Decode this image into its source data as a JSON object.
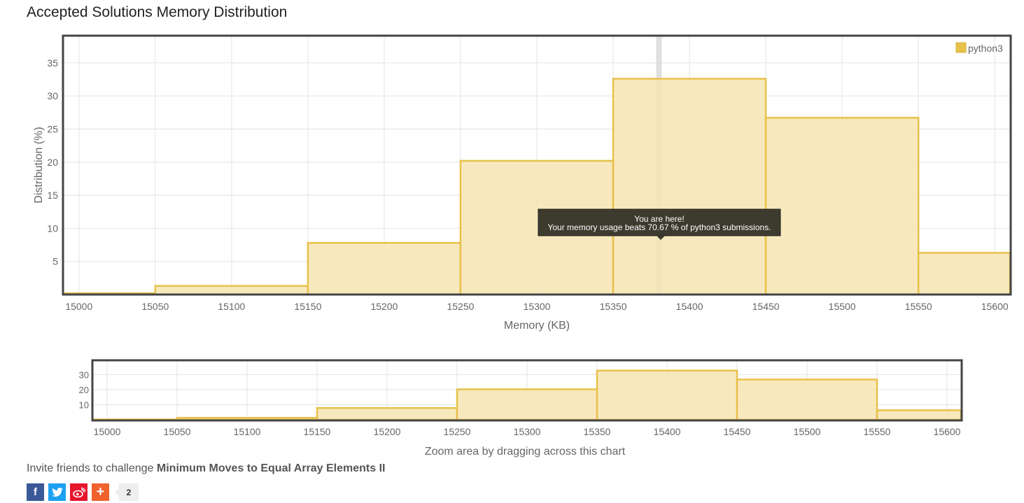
{
  "page": {
    "title": "Accepted Solutions Memory Distribution"
  },
  "tooltip": {
    "line1": "You are here!",
    "line2": "Your memory usage beats 70.67 % of python3 submissions."
  },
  "navigator": {
    "caption": "Zoom area by dragging across this chart"
  },
  "invite": {
    "prefix": "Invite friends to challenge ",
    "problem": "Minimum Moves to Equal Array Elements II"
  },
  "social": {
    "share_count": "2",
    "icons": [
      "facebook-icon",
      "twitter-icon",
      "weibo-icon",
      "plus-icon"
    ]
  },
  "colors": {
    "bar_fill": "#f6e5b2",
    "bar_stroke": "#e8c14a",
    "highlight": "#d8d8d8",
    "tooltip_bg": "#3d3a2e"
  },
  "chart_data": {
    "type": "bar",
    "xlabel": "Memory (KB)",
    "ylabel": "Distribution (%)",
    "legend": [
      "python3"
    ],
    "legend_position": "top-right",
    "grid": true,
    "x_ticks": [
      15000,
      15050,
      15100,
      15150,
      15200,
      15250,
      15300,
      15350,
      15400,
      15450,
      15500,
      15550,
      15600
    ],
    "y_ticks": [
      5,
      10,
      15,
      20,
      25,
      30,
      35
    ],
    "xlim": [
      14990,
      15610
    ],
    "ylim": [
      0,
      39
    ],
    "series": [
      {
        "name": "python3",
        "bins": [
          {
            "x0": 14950,
            "x1": 15050,
            "value": 0.2
          },
          {
            "x0": 15050,
            "x1": 15150,
            "value": 1.3
          },
          {
            "x0": 15150,
            "x1": 15250,
            "value": 7.8
          },
          {
            "x0": 15250,
            "x1": 15350,
            "value": 20.2
          },
          {
            "x0": 15350,
            "x1": 15450,
            "value": 32.6
          },
          {
            "x0": 15450,
            "x1": 15550,
            "value": 26.7
          },
          {
            "x0": 15550,
            "x1": 15650,
            "value": 6.3
          }
        ]
      }
    ],
    "marker_x": 15380,
    "navigator": {
      "x_ticks": [
        15000,
        15050,
        15100,
        15150,
        15200,
        15250,
        15300,
        15350,
        15400,
        15450,
        15500,
        15550,
        15600
      ],
      "y_ticks": [
        10,
        20,
        30
      ]
    }
  }
}
